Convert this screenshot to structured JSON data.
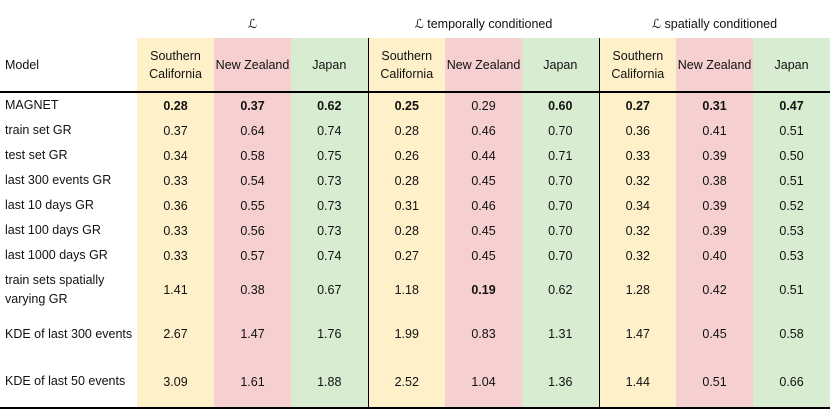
{
  "table": {
    "model_header": "Model",
    "groups": [
      "ℒ",
      "ℒ temporally conditioned",
      "ℒ spatially conditioned"
    ],
    "regions": [
      "Southern California",
      "New Zealand",
      "Japan"
    ],
    "rows": [
      {
        "model": "MAGNET",
        "values": [
          "0.28",
          "0.37",
          "0.62",
          "0.25",
          "0.29",
          "0.60",
          "0.27",
          "0.31",
          "0.47"
        ],
        "bold": [
          true,
          true,
          true,
          true,
          false,
          true,
          true,
          true,
          true
        ]
      },
      {
        "model": "train set GR",
        "values": [
          "0.37",
          "0.64",
          "0.74",
          "0.28",
          "0.46",
          "0.70",
          "0.36",
          "0.41",
          "0.51"
        ],
        "bold": []
      },
      {
        "model": "test set GR",
        "values": [
          "0.34",
          "0.58",
          "0.75",
          "0.26",
          "0.44",
          "0.71",
          "0.33",
          "0.39",
          "0.50"
        ],
        "bold": []
      },
      {
        "model": "last 300 events GR",
        "values": [
          "0.33",
          "0.54",
          "0.73",
          "0.28",
          "0.45",
          "0.70",
          "0.32",
          "0.38",
          "0.51"
        ],
        "bold": []
      },
      {
        "model": "last 10 days GR",
        "values": [
          "0.36",
          "0.55",
          "0.73",
          "0.31",
          "0.46",
          "0.70",
          "0.34",
          "0.39",
          "0.52"
        ],
        "bold": []
      },
      {
        "model": "last 100 days GR",
        "values": [
          "0.33",
          "0.56",
          "0.73",
          "0.28",
          "0.45",
          "0.70",
          "0.32",
          "0.39",
          "0.53"
        ],
        "bold": []
      },
      {
        "model": "last 1000 days GR",
        "values": [
          "0.33",
          "0.57",
          "0.74",
          "0.27",
          "0.45",
          "0.70",
          "0.32",
          "0.40",
          "0.53"
        ],
        "bold": []
      },
      {
        "model": "train sets spatially varying GR",
        "values": [
          "1.41",
          "0.38",
          "0.67",
          "1.18",
          "0.19",
          "0.62",
          "1.28",
          "0.42",
          "0.51"
        ],
        "bold": [
          false,
          false,
          false,
          false,
          true,
          false,
          false,
          false,
          false
        ]
      },
      {
        "model": "KDE of last 300 events",
        "values": [
          "2.67",
          "1.47",
          "1.76",
          "1.99",
          "0.83",
          "1.31",
          "1.47",
          "0.45",
          "0.58"
        ],
        "bold": []
      },
      {
        "model": "KDE of last 50 events",
        "values": [
          "3.09",
          "1.61",
          "1.88",
          "2.52",
          "1.04",
          "1.36",
          "1.44",
          "0.51",
          "0.66"
        ],
        "bold": []
      }
    ]
  }
}
